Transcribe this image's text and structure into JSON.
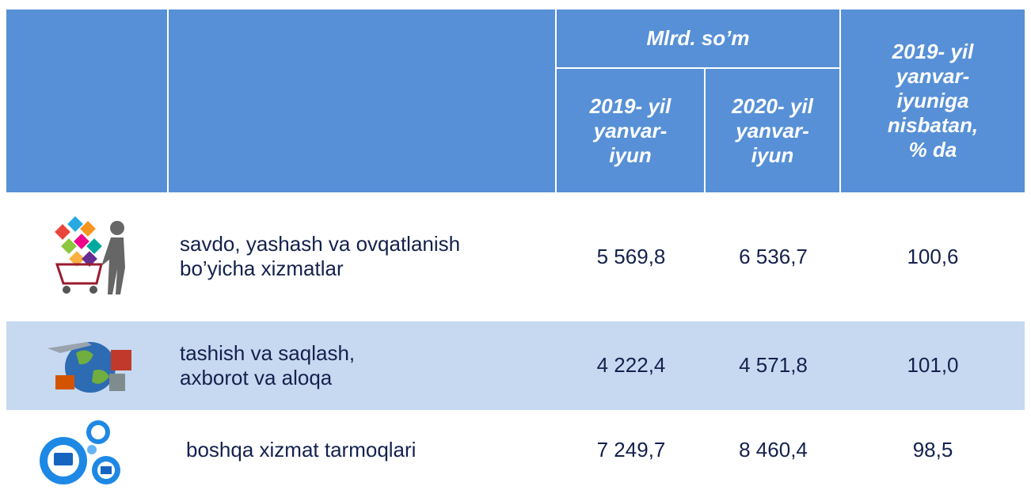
{
  "header": {
    "group": "Mlrd. so’m",
    "col1": [
      "2019- yil",
      "yanvar-",
      "iyun"
    ],
    "col2": [
      "2020- yil",
      "yanvar-",
      "iyun"
    ],
    "col3": [
      "2019- yil",
      "yanvar-",
      "iyuniga",
      "nisbatan,",
      "% da"
    ]
  },
  "table": {
    "rows": [
      [
        "savdo, yashash va ovqatlanish\nbo’yicha xizmatlar",
        "5 569,8",
        "6 536,7",
        "100,6"
      ],
      [
        "tashish va saqlash,\naxborot va aloqa",
        "4 222,4",
        "4 571,8",
        "101,0"
      ],
      [
        "boshqa xizmat tarmoqlari",
        "7 249,7",
        "8 460,4",
        "98,5"
      ]
    ]
  }
}
